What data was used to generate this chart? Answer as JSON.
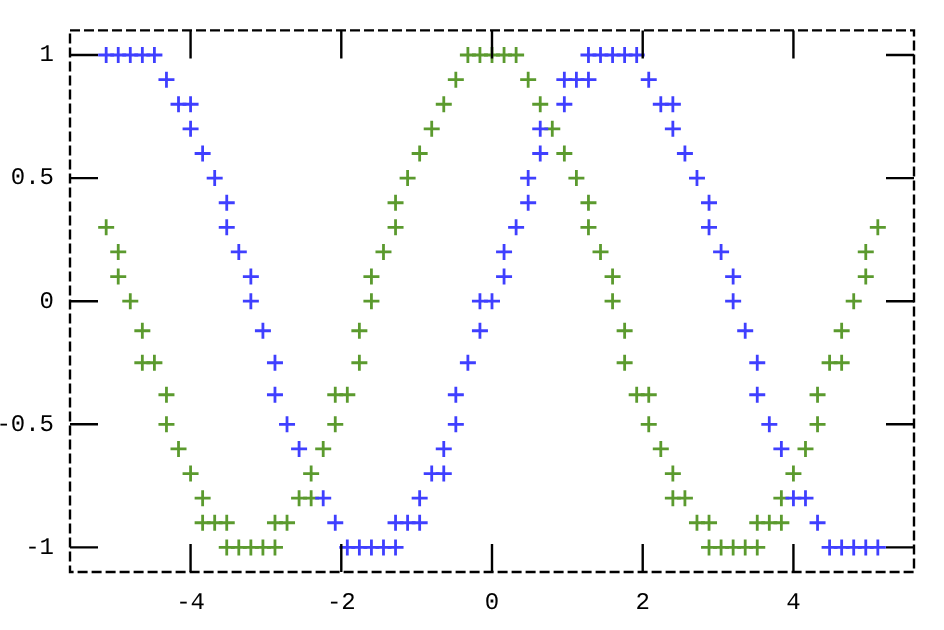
{
  "chart_data": {
    "type": "scatter",
    "marker": "cross",
    "grid": false,
    "legend": false,
    "xlim": [
      -5.6,
      5.6
    ],
    "ylim": [
      -1.1,
      1.1
    ],
    "xticks": [
      -4,
      -2,
      0,
      2,
      4
    ],
    "yticks": [
      -1,
      -0.5,
      0,
      0.5,
      1
    ],
    "series": [
      {
        "color": "#3f3fff",
        "x": [
          -5.12,
          -4.96,
          -4.8,
          -4.64,
          -4.48,
          -4.32,
          -4.16,
          -4,
          -4,
          -3.84,
          -3.68,
          -3.52,
          -3.52,
          -3.36,
          -3.2,
          -3.2,
          -3.04,
          -2.88,
          -2.88,
          -2.72,
          -2.56,
          -2.24,
          -2.08,
          -1.92,
          -1.76,
          -1.6,
          -1.44,
          -1.28,
          -1.28,
          -1.12,
          -0.96,
          -0.96,
          -0.8,
          -0.64,
          -0.64,
          -0.48,
          -0.48,
          -0.32,
          -0.16,
          -0.16,
          0,
          0.16,
          0.16,
          0.32,
          0.48,
          0.48,
          0.64,
          0.64,
          0.96,
          0.96,
          1.12,
          1.28,
          1.28,
          1.44,
          1.6,
          1.76,
          1.92,
          2.08,
          2.24,
          2.4,
          2.4,
          2.56,
          2.72,
          2.88,
          2.88,
          3.04,
          3.2,
          3.2,
          3.36,
          3.52,
          3.52,
          3.68,
          3.84,
          4,
          4.16,
          4.32,
          4.48,
          4.64,
          4.8,
          4.96,
          5.12
        ],
        "values": [
          1,
          1,
          1,
          1,
          1,
          0.9,
          0.8,
          0.8,
          0.7,
          0.6,
          0.5,
          0.4,
          0.3,
          0.2,
          0.1,
          0,
          -0.12,
          -0.25,
          -0.38,
          -0.5,
          -0.6,
          -0.8,
          -0.9,
          -1,
          -1,
          -1,
          -1,
          -1,
          -0.9,
          -0.9,
          -0.9,
          -0.8,
          -0.7,
          -0.7,
          -0.6,
          -0.5,
          -0.38,
          -0.25,
          -0.12,
          0,
          0,
          0.1,
          0.2,
          0.3,
          0.4,
          0.5,
          0.6,
          0.7,
          0.8,
          0.9,
          0.9,
          0.9,
          1,
          1,
          1,
          1,
          1,
          0.9,
          0.8,
          0.8,
          0.7,
          0.6,
          0.5,
          0.4,
          0.3,
          0.2,
          0.1,
          0,
          -0.12,
          -0.25,
          -0.38,
          -0.5,
          -0.6,
          -0.8,
          -0.8,
          -0.9,
          -1,
          -1,
          -1,
          -1,
          -1
        ]
      },
      {
        "color": "#5b9a2e",
        "x": [
          -5.12,
          -4.96,
          -4.96,
          -4.8,
          -4.64,
          -4.64,
          -4.48,
          -4.32,
          -4.32,
          -4.16,
          -4,
          -3.84,
          -3.84,
          -3.68,
          -3.52,
          -3.52,
          -3.36,
          -3.2,
          -3.04,
          -2.88,
          -2.88,
          -2.72,
          -2.56,
          -2.4,
          -2.4,
          -2.24,
          -2.08,
          -2.08,
          -1.92,
          -1.76,
          -1.76,
          -1.6,
          -1.6,
          -1.44,
          -1.28,
          -1.28,
          -1.12,
          -0.96,
          -0.8,
          -0.64,
          -0.48,
          -0.32,
          -0.16,
          0,
          0.16,
          0.32,
          0.48,
          0.64,
          0.8,
          0.96,
          1.12,
          1.28,
          1.28,
          1.44,
          1.6,
          1.6,
          1.76,
          1.76,
          1.92,
          2.08,
          2.08,
          2.24,
          2.4,
          2.4,
          2.56,
          2.72,
          2.88,
          2.88,
          3.04,
          3.2,
          3.36,
          3.52,
          3.52,
          3.68,
          3.84,
          3.84,
          4,
          4.16,
          4.32,
          4.32,
          4.48,
          4.64,
          4.64,
          4.8,
          4.96,
          4.96,
          5.12
        ],
        "values": [
          0.3,
          0.2,
          0.1,
          0,
          -0.12,
          -0.25,
          -0.25,
          -0.38,
          -0.5,
          -0.6,
          -0.7,
          -0.8,
          -0.9,
          -0.9,
          -0.9,
          -1,
          -1,
          -1,
          -1,
          -1,
          -0.9,
          -0.9,
          -0.8,
          -0.8,
          -0.7,
          -0.6,
          -0.5,
          -0.38,
          -0.38,
          -0.25,
          -0.12,
          0,
          0.1,
          0.2,
          0.3,
          0.4,
          0.5,
          0.6,
          0.7,
          0.8,
          0.9,
          1,
          1,
          1,
          1,
          1,
          0.9,
          0.8,
          0.7,
          0.6,
          0.5,
          0.4,
          0.3,
          0.2,
          0.1,
          0,
          -0.12,
          -0.25,
          -0.38,
          -0.38,
          -0.5,
          -0.6,
          -0.7,
          -0.8,
          -0.8,
          -0.9,
          -0.9,
          -1,
          -1,
          -1,
          -1,
          -1,
          -0.9,
          -0.9,
          -0.9,
          -0.8,
          -0.7,
          -0.6,
          -0.5,
          -0.38,
          -0.25,
          -0.25,
          -0.12,
          0,
          0.1,
          0.2,
          0.3
        ]
      }
    ]
  }
}
